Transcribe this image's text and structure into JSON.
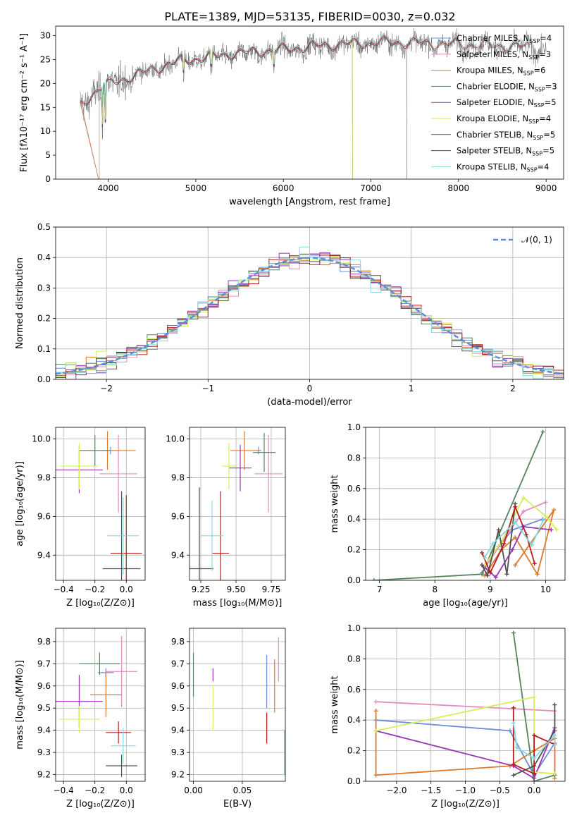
{
  "figure_title": "PLATE=1389, MJD=53135, FIBERID=0030, z=0.032",
  "colors": {
    "Chabrier MILES": "#6b8ed6",
    "Salpeter MILES": "#e48cc1",
    "Kroupa MILES": "#dd7a2a",
    "Chabrier ELODIE": "#56845c",
    "Salpeter ELODIE": "#9b32b7",
    "Kroupa ELODIE": "#d6ef56",
    "Chabrier STELIB": "#525252",
    "Salpeter STELIB": "#b81b1b",
    "Kroupa STELIB": "#82dbe0",
    "normal_curve": "#5b8ed6"
  },
  "chart_data": [
    {
      "id": "spectrum",
      "type": "line",
      "xlabel": "wavelength [Angstrom, rest frame]",
      "ylabel": "Flux [fλ10⁻¹⁷ erg cm⁻² s⁻¹ A⁻¹]",
      "xlim": [
        3400,
        9200
      ],
      "ylim": [
        0,
        32
      ],
      "xticks": [
        4000,
        5000,
        6000,
        7000,
        8000,
        9000
      ],
      "yticks": [
        0,
        5,
        10,
        15,
        20,
        25,
        30
      ],
      "grid": false,
      "legend_position": "top-right",
      "legend": [
        {
          "label": "Chabrier MILES, N",
          "sub": "SSP",
          "tail": "=4",
          "key": "Chabrier MILES"
        },
        {
          "label": "Salpeter MILES, N",
          "sub": "SSP",
          "tail": "=3",
          "key": "Salpeter MILES"
        },
        {
          "label": "Kroupa MILES, N",
          "sub": "SSP",
          "tail": "=6",
          "key": "Kroupa MILES"
        },
        {
          "label": "Chabrier ELODIE, N",
          "sub": "SSP",
          "tail": "=3",
          "key": "Chabrier ELODIE"
        },
        {
          "label": "Salpeter ELODIE, N",
          "sub": "SSP",
          "tail": "=5",
          "key": "Salpeter ELODIE"
        },
        {
          "label": "Kroupa ELODIE, N",
          "sub": "SSP",
          "tail": "=4",
          "key": "Kroupa ELODIE"
        },
        {
          "label": "Chabrier STELIB, N",
          "sub": "SSP",
          "tail": "=5",
          "key": "Chabrier STELIB"
        },
        {
          "label": "Salpeter STELIB, N",
          "sub": "SSP",
          "tail": "=5",
          "key": "Salpeter STELIB"
        },
        {
          "label": "Kroupa STELIB, N",
          "sub": "SSP",
          "tail": "=4",
          "key": "Kroupa STELIB"
        }
      ],
      "continuum_anchors": [
        [
          3680,
          15
        ],
        [
          3900,
          19
        ],
        [
          4300,
          21.5
        ],
        [
          4800,
          24.5
        ],
        [
          5400,
          26
        ],
        [
          6000,
          27
        ],
        [
          6600,
          28
        ],
        [
          7200,
          28.5
        ],
        [
          8000,
          28
        ],
        [
          8800,
          27.5
        ],
        [
          9000,
          27.2
        ]
      ],
      "series_extents": {
        "data": [
          3680,
          9000
        ],
        "MILES": [
          3680,
          7410
        ],
        "ELODIE": [
          3900,
          6790
        ],
        "STELIB": [
          3680,
          8800
        ]
      }
    },
    {
      "id": "residuals",
      "type": "histogram",
      "xlabel": "(data-model)/error",
      "ylabel": "Normed distribution",
      "xlim": [
        -2.5,
        2.5
      ],
      "ylim": [
        0,
        0.5
      ],
      "xticks": [
        -2,
        -1,
        0,
        1,
        2
      ],
      "yticks": [
        0.0,
        0.1,
        0.2,
        0.3,
        0.4,
        0.5
      ],
      "grid": true,
      "bin_width": 0.1,
      "legend_position": "top-right",
      "curve_label": "𝒩(0, 1)"
    },
    {
      "id": "age_vs_Z",
      "type": "scatter",
      "xlabel": "Z [log₁₀(Z/Z⊙)]",
      "ylabel": "age  [log₁₀(age/yr)]",
      "xlim": [
        -0.45,
        0.12
      ],
      "ylim": [
        9.27,
        10.06
      ],
      "xticks": [
        -0.4,
        -0.2,
        0.0
      ],
      "yticks": [
        9.4,
        9.6,
        9.8,
        10.0
      ],
      "grid": true,
      "points": [
        {
          "key": "Chabrier MILES",
          "x": -0.1,
          "xerr": 0.05,
          "y": 9.94,
          "yerr": 0.02
        },
        {
          "key": "Salpeter MILES",
          "x": -0.05,
          "xerr": 0.12,
          "y": 9.82,
          "yerr": 0.2
        },
        {
          "key": "Kroupa MILES",
          "x": -0.12,
          "xerr": 0.18,
          "y": 9.94,
          "yerr": 0.1
        },
        {
          "key": "Chabrier ELODIE",
          "x": -0.2,
          "xerr": 0.1,
          "y": 9.94,
          "yerr": 0.08
        },
        {
          "key": "Salpeter ELODIE",
          "x": -0.3,
          "xerr": 0.15,
          "y": 9.84,
          "yerr": 0.12
        },
        {
          "key": "Kroupa ELODIE",
          "x": -0.3,
          "xerr": 0.12,
          "y": 9.86,
          "yerr": 0.12
        },
        {
          "key": "Chabrier STELIB",
          "x": -0.03,
          "xerr": 0.12,
          "y": 9.33,
          "yerr": 0.4
        },
        {
          "key": "Salpeter STELIB",
          "x": 0.0,
          "xerr": 0.1,
          "y": 9.41,
          "yerr": 0.3
        },
        {
          "key": "Kroupa STELIB",
          "x": -0.02,
          "xerr": 0.1,
          "y": 9.5,
          "yerr": 0.2
        }
      ]
    },
    {
      "id": "age_vs_mass",
      "type": "scatter",
      "xlabel": "mass [log₁₀(M/M⊙)]",
      "ylabel": "",
      "xlim": [
        9.17,
        9.85
      ],
      "ylim": [
        9.27,
        10.06
      ],
      "xticks": [
        9.25,
        9.5,
        9.75
      ],
      "yticks": [
        9.4,
        9.6,
        9.8,
        10.0
      ],
      "grid": true,
      "points": [
        {
          "key": "Chabrier MILES",
          "x": 9.66,
          "xerr": 0.02,
          "y": 9.94,
          "yerr": 0.02
        },
        {
          "key": "Salpeter MILES",
          "x": 9.73,
          "xerr": 0.1,
          "y": 9.82,
          "yerr": 0.2
        },
        {
          "key": "Kroupa MILES",
          "x": 9.56,
          "xerr": 0.1,
          "y": 9.94,
          "yerr": 0.1
        },
        {
          "key": "Chabrier ELODIE",
          "x": 9.7,
          "xerr": 0.08,
          "y": 9.93,
          "yerr": 0.1
        },
        {
          "key": "Salpeter ELODIE",
          "x": 9.53,
          "xerr": 0.08,
          "y": 9.85,
          "yerr": 0.12
        },
        {
          "key": "Kroupa ELODIE",
          "x": 9.45,
          "xerr": 0.05,
          "y": 9.86,
          "yerr": 0.12
        },
        {
          "key": "Chabrier STELIB",
          "x": 9.24,
          "xerr": 0.1,
          "y": 9.33,
          "yerr": 0.42
        },
        {
          "key": "Salpeter STELIB",
          "x": 9.39,
          "xerr": 0.06,
          "y": 9.41,
          "yerr": 0.32
        },
        {
          "key": "Kroupa STELIB",
          "x": 9.33,
          "xerr": 0.08,
          "y": 9.5,
          "yerr": 0.18
        }
      ]
    },
    {
      "id": "mass_weight_vs_age",
      "type": "line",
      "xlabel": "age  [log₁₀(age/yr)]",
      "ylabel": "mass weight",
      "xlim": [
        6.75,
        10.35
      ],
      "ylim": [
        0,
        1.0
      ],
      "xticks": [
        7,
        8,
        9,
        10
      ],
      "yticks": [
        0.0,
        0.2,
        0.4,
        0.6,
        0.8,
        1.0
      ],
      "grid": true,
      "series": [
        {
          "key": "Chabrier MILES",
          "x": [
            8.85,
            9.15,
            9.4,
            9.95
          ],
          "y": [
            0.05,
            0.22,
            0.33,
            0.4
          ]
        },
        {
          "key": "Salpeter MILES",
          "x": [
            8.9,
            9.3,
            9.6,
            10.0
          ],
          "y": [
            0.08,
            0.3,
            0.45,
            0.51
          ]
        },
        {
          "key": "Kroupa MILES",
          "x": [
            8.9,
            9.2,
            9.45,
            9.85,
            10.15,
            9.45
          ],
          "y": [
            0.03,
            0.2,
            0.28,
            0.04,
            0.46,
            0.1
          ]
        },
        {
          "key": "Chabrier ELODIE",
          "x": [
            6.9,
            8.85,
            9.95
          ],
          "y": [
            0.0,
            0.04,
            0.97
          ]
        },
        {
          "key": "Salpeter ELODIE",
          "x": [
            8.85,
            9.1,
            9.4,
            9.6,
            10.1
          ],
          "y": [
            0.1,
            0.02,
            0.2,
            0.35,
            0.33
          ]
        },
        {
          "key": "Kroupa ELODIE",
          "x": [
            8.9,
            9.2,
            9.6,
            10.0,
            10.2
          ],
          "y": [
            0.1,
            0.25,
            0.54,
            0.42,
            0.33
          ]
        },
        {
          "key": "Chabrier STELIB",
          "x": [
            8.85,
            8.95,
            9.15,
            9.3,
            9.45
          ],
          "y": [
            0.1,
            0.03,
            0.33,
            0.04,
            0.5
          ]
        },
        {
          "key": "Salpeter STELIB",
          "x": [
            8.85,
            9.0,
            9.25,
            9.45,
            9.65,
            9.8
          ],
          "y": [
            0.18,
            0.05,
            0.24,
            0.48,
            0.3,
            0.11
          ]
        },
        {
          "key": "Kroupa STELIB",
          "x": [
            8.9,
            9.05,
            9.45,
            9.75,
            9.95
          ],
          "y": [
            0.15,
            0.24,
            0.38,
            0.23,
            0.39
          ]
        }
      ]
    },
    {
      "id": "mass_vs_Z",
      "type": "scatter",
      "xlabel": "Z [log₁₀(Z/Z⊙)]",
      "ylabel": "mass [log₁₀(M/M⊙)]",
      "xlim": [
        -0.45,
        0.12
      ],
      "ylim": [
        9.17,
        9.86
      ],
      "xticks": [
        -0.4,
        -0.2,
        0.0
      ],
      "yticks": [
        9.2,
        9.3,
        9.4,
        9.5,
        9.6,
        9.7,
        9.8
      ],
      "grid": true,
      "points": [
        {
          "key": "Chabrier MILES",
          "x": -0.13,
          "xerr": 0.05,
          "y": 9.66,
          "yerr": 0.02
        },
        {
          "key": "Salpeter MILES",
          "x": -0.03,
          "xerr": 0.1,
          "y": 9.665,
          "yerr": 0.16
        },
        {
          "key": "Kroupa MILES",
          "x": -0.13,
          "xerr": 0.1,
          "y": 9.56,
          "yerr": 0.1
        },
        {
          "key": "Chabrier ELODIE",
          "x": -0.17,
          "xerr": 0.13,
          "y": 9.7,
          "yerr": 0.05
        },
        {
          "key": "Salpeter ELODIE",
          "x": -0.3,
          "xerr": 0.15,
          "y": 9.53,
          "yerr": 0.12
        },
        {
          "key": "Kroupa ELODIE",
          "x": -0.3,
          "xerr": 0.13,
          "y": 9.45,
          "yerr": 0.06
        },
        {
          "key": "Chabrier STELIB",
          "x": -0.03,
          "xerr": 0.1,
          "y": 9.24,
          "yerr": 0.05
        },
        {
          "key": "Salpeter STELIB",
          "x": -0.05,
          "xerr": 0.08,
          "y": 9.39,
          "yerr": 0.05
        },
        {
          "key": "Kroupa STELIB",
          "x": -0.02,
          "xerr": 0.08,
          "y": 9.33,
          "yerr": 0.08
        }
      ]
    },
    {
      "id": "mass_vs_EBV",
      "type": "scatter",
      "xlabel": "E(B-V)",
      "ylabel": "",
      "xlim": [
        -0.004,
        0.094
      ],
      "ylim": [
        9.17,
        9.86
      ],
      "xticks": [
        0.0,
        0.05
      ],
      "yticks": [
        9.2,
        9.3,
        9.4,
        9.5,
        9.6,
        9.7,
        9.8
      ],
      "grid": true,
      "points": [
        {
          "key": "Chabrier MILES",
          "x": 0.075,
          "y": 9.62,
          "yerr": 0.12
        },
        {
          "key": "Salpeter MILES",
          "x": 0.087,
          "y": 9.72,
          "yerr": 0.1
        },
        {
          "key": "Kroupa MILES",
          "x": 0.083,
          "y": 9.6,
          "yerr": 0.12
        },
        {
          "key": "Chabrier ELODIE",
          "x": 0.0,
          "y": 9.65,
          "yerr": 0.1
        },
        {
          "key": "Salpeter ELODIE",
          "x": 0.02,
          "y": 9.65,
          "yerr": 0.03
        },
        {
          "key": "Kroupa ELODIE",
          "x": 0.02,
          "y": 9.5,
          "yerr": 0.1
        },
        {
          "key": "Chabrier STELIB",
          "x": 0.094,
          "y": 9.3,
          "yerr": 0.1
        },
        {
          "key": "Salpeter STELIB",
          "x": 0.075,
          "y": 9.41,
          "yerr": 0.07
        },
        {
          "key": "Kroupa STELIB",
          "x": 0.093,
          "y": 9.3,
          "yerr": 0.1
        }
      ]
    },
    {
      "id": "mass_weight_vs_Z",
      "type": "line",
      "xlabel": "Z [log₁₀(Z/Z⊙)]",
      "ylabel": "mass weight",
      "xlim": [
        -2.45,
        0.45
      ],
      "ylim": [
        0,
        1.0
      ],
      "xticks": [
        -2.0,
        -1.5,
        -1.0,
        -0.5,
        0.0
      ],
      "yticks": [
        0.0,
        0.2,
        0.4,
        0.6,
        0.8,
        1.0
      ],
      "grid": true,
      "series": [
        {
          "key": "Chabrier MILES",
          "x": [
            -2.3,
            -0.35,
            0.0,
            0.3
          ],
          "y": [
            0.4,
            0.33,
            0.04,
            0.25
          ]
        },
        {
          "key": "Salpeter MILES",
          "x": [
            -2.3,
            0.3,
            0.3
          ],
          "y": [
            0.52,
            0.46,
            0.05
          ]
        },
        {
          "key": "Kroupa MILES",
          "x": [
            -2.3,
            -2.3,
            -0.35,
            0.0,
            0.3,
            0.3
          ],
          "y": [
            0.46,
            0.04,
            0.1,
            0.2,
            0.28,
            0.02
          ]
        },
        {
          "key": "Chabrier ELODIE",
          "x": [
            -0.3,
            0.0,
            0.3
          ],
          "y": [
            0.97,
            0.0,
            0.04
          ]
        },
        {
          "key": "Salpeter ELODIE",
          "x": [
            -2.3,
            -0.3,
            0.0,
            0.3
          ],
          "y": [
            0.33,
            0.1,
            0.02,
            0.35
          ]
        },
        {
          "key": "Kroupa ELODIE",
          "x": [
            -2.3,
            0.0,
            0.0,
            0.3
          ],
          "y": [
            0.33,
            0.55,
            0.06,
            0.05
          ]
        },
        {
          "key": "Chabrier STELIB",
          "x": [
            -0.3,
            0.0,
            0.3,
            0.3
          ],
          "y": [
            0.04,
            0.1,
            0.33,
            0.5
          ]
        },
        {
          "key": "Salpeter STELIB",
          "x": [
            -0.3,
            -0.3,
            0.0,
            0.0,
            0.3
          ],
          "y": [
            0.48,
            0.11,
            0.05,
            0.3,
            0.24
          ]
        },
        {
          "key": "Kroupa STELIB",
          "x": [
            -0.3,
            -0.25,
            0.0,
            0.3,
            0.3
          ],
          "y": [
            0.38,
            0.22,
            0.15,
            0.3,
            0.24
          ]
        }
      ]
    }
  ]
}
